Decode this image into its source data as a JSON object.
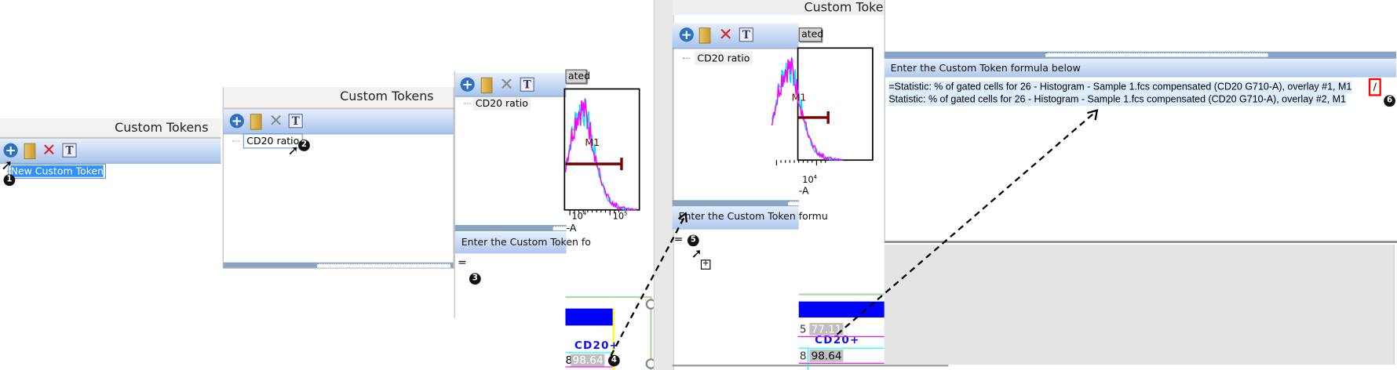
{
  "panel_title": "Custom Tokens",
  "step1": {
    "new_item": "New Custom Token",
    "badge": "1"
  },
  "step2": {
    "item": "CD20 ratio",
    "badge": "2"
  },
  "step3": {
    "item": "CD20 ratio",
    "header": "Enter the Custom Token fo",
    "formula": "=",
    "badge": "3"
  },
  "step4": {
    "badge": "4",
    "table_header": "CD20+",
    "partial": "8",
    "value": "98.64"
  },
  "step5": {
    "item": "CD20 ratio",
    "header": "Enter the Custom Token formu",
    "formula": "=",
    "badge": "5",
    "table_header": "CD20+",
    "partial_1": "8",
    "value_1": "98.64",
    "partial_2": "5",
    "value_2": "77.11"
  },
  "step6": {
    "header": "Enter the Custom Token formula below",
    "formula_line_1": "=Statistic: % of gated cells for 26 - Histogram - Sample 1.fcs compensated (CD20 G710-A), overlay #1, M1",
    "operator": "/",
    "formula_line_2": "Statistic: % of gated cells for 26 - Histogram - Sample 1.fcs compensated (CD20 G710-A), overlay #2, M1",
    "badge": "6"
  },
  "histogram": {
    "button_partial": "ated",
    "gate_label": "M1",
    "tick_base": "10",
    "tick_exp_1": "4",
    "tick_exp_2": "5",
    "axis_label_partial": "-A"
  },
  "toolbar_icons": [
    "add-icon",
    "folder-icon",
    "delete-icon",
    "text-token-icon"
  ],
  "colors": {
    "overlay_1": "#ff00ff",
    "overlay_2": "#00e5ff",
    "gate": "#7a0000",
    "table_header": "#0000ff",
    "highlight": "#ff0000"
  }
}
